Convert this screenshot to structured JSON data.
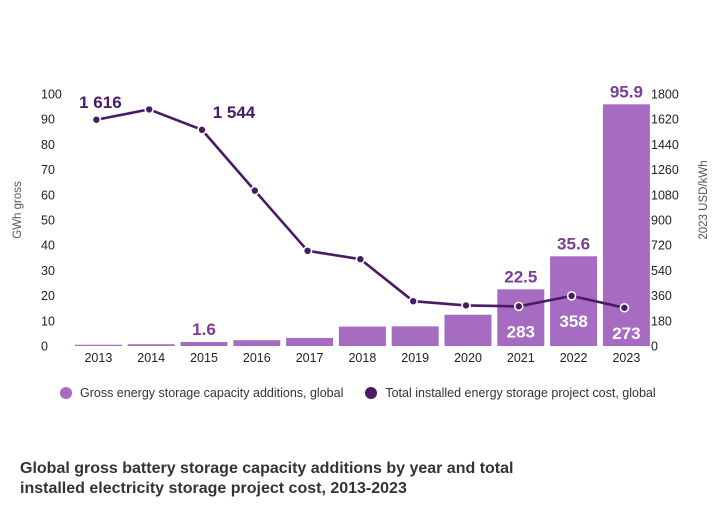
{
  "chart_data": {
    "type": "bar",
    "title": "Global gross battery storage capacity additions by year and total installed electricity storage project cost, 2013-2023",
    "categories": [
      "2013",
      "2014",
      "2015",
      "2016",
      "2017",
      "2018",
      "2019",
      "2020",
      "2021",
      "2022",
      "2023"
    ],
    "y_left": {
      "label": "GWh gross",
      "range": [
        0,
        100
      ],
      "ticks": [
        0,
        10,
        20,
        30,
        40,
        50,
        60,
        70,
        80,
        90,
        100
      ]
    },
    "y_right": {
      "label": "2023 USD/kWh",
      "range": [
        0,
        1800
      ],
      "ticks": [
        0,
        180,
        360,
        540,
        720,
        900,
        1080,
        1260,
        1440,
        1620,
        1800
      ]
    },
    "series": [
      {
        "name": "Gross energy storage capacity additions, global",
        "type": "bar",
        "axis": "left",
        "color": "#a56cc1",
        "values": [
          0.5,
          0.7,
          1.6,
          2.3,
          3.2,
          7.7,
          7.8,
          12.4,
          22.5,
          35.6,
          95.9
        ],
        "labels": {
          "2015": "1.6",
          "2021": "22.5",
          "2022": "35.6",
          "2023": "95.9"
        }
      },
      {
        "name": "Total installed energy storage project cost, global",
        "type": "line",
        "axis": "right",
        "color": "#4a1a63",
        "values": [
          1616,
          1690,
          1544,
          1110,
          680,
          620,
          320,
          290,
          283,
          358,
          273
        ],
        "labels": {
          "2013": "1 616",
          "2015": "1 544",
          "2021": "283",
          "2022": "358",
          "2023": "273"
        }
      }
    ],
    "legend_position": "bottom"
  }
}
